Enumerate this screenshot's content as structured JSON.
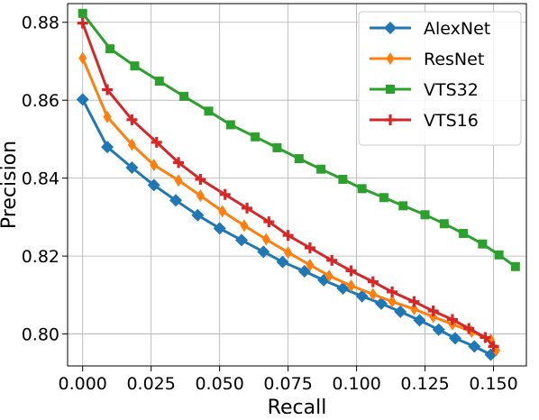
{
  "chart_data": {
    "type": "line",
    "title": "",
    "xlabel": "Recall",
    "ylabel": "Precision",
    "xlim": [
      -0.0055,
      0.162
    ],
    "ylim": [
      0.7918,
      0.8848
    ],
    "xticks": [
      0.0,
      0.025,
      0.05,
      0.075,
      0.1,
      0.125,
      0.15
    ],
    "xtick_labels": [
      "0.000",
      "0.025",
      "0.050",
      "0.075",
      "0.100",
      "0.125",
      "0.150"
    ],
    "yticks": [
      0.8,
      0.82,
      0.84,
      0.86,
      0.88
    ],
    "ytick_labels": [
      "0.80",
      "0.82",
      "0.84",
      "0.86",
      "0.88"
    ],
    "grid": true,
    "legend_position": "top-right",
    "series": [
      {
        "name": "AlexNet",
        "color": "#1f77b4",
        "marker": "diamond",
        "x": [
          0.0,
          0.009,
          0.018,
          0.026,
          0.034,
          0.042,
          0.05,
          0.058,
          0.066,
          0.073,
          0.081,
          0.088,
          0.095,
          0.102,
          0.109,
          0.116,
          0.123,
          0.13,
          0.136,
          0.143,
          0.149
        ],
        "y": [
          0.8602,
          0.848,
          0.8427,
          0.8382,
          0.8343,
          0.8305,
          0.8271,
          0.8241,
          0.8211,
          0.8185,
          0.8161,
          0.8138,
          0.8117,
          0.8097,
          0.8078,
          0.8057,
          0.8035,
          0.8011,
          0.7989,
          0.7968,
          0.7947
        ]
      },
      {
        "name": "ResNet",
        "color": "#ff7f0e",
        "marker": "thin-diamond",
        "x": [
          0.0,
          0.009,
          0.018,
          0.026,
          0.035,
          0.043,
          0.051,
          0.059,
          0.067,
          0.075,
          0.083,
          0.09,
          0.098,
          0.106,
          0.113,
          0.121,
          0.128,
          0.135,
          0.142,
          0.149,
          0.151
        ],
        "y": [
          0.8708,
          0.8557,
          0.8486,
          0.8434,
          0.8394,
          0.8355,
          0.8315,
          0.8278,
          0.8243,
          0.8209,
          0.8177,
          0.8149,
          0.8124,
          0.8102,
          0.8083,
          0.8064,
          0.8044,
          0.8025,
          0.8006,
          0.7985,
          0.7958
        ]
      },
      {
        "name": "VTS32",
        "color": "#2ca02c",
        "marker": "square",
        "x": [
          0.0,
          0.01,
          0.019,
          0.028,
          0.037,
          0.046,
          0.054,
          0.063,
          0.071,
          0.079,
          0.087,
          0.095,
          0.102,
          0.11,
          0.117,
          0.125,
          0.132,
          0.139,
          0.146,
          0.152,
          0.158
        ],
        "y": [
          0.8823,
          0.8732,
          0.8688,
          0.8649,
          0.861,
          0.8572,
          0.8537,
          0.8506,
          0.8478,
          0.845,
          0.8423,
          0.8397,
          0.8373,
          0.835,
          0.8329,
          0.8306,
          0.8283,
          0.8258,
          0.8231,
          0.8203,
          0.8173
        ]
      },
      {
        "name": "VTS16",
        "color": "#d62728",
        "marker": "plus",
        "x": [
          0.0,
          0.009,
          0.018,
          0.027,
          0.035,
          0.043,
          0.052,
          0.06,
          0.068,
          0.075,
          0.083,
          0.091,
          0.098,
          0.106,
          0.113,
          0.121,
          0.128,
          0.135,
          0.141,
          0.147,
          0.15
        ],
        "y": [
          0.8798,
          0.8627,
          0.855,
          0.8492,
          0.844,
          0.8397,
          0.8358,
          0.8323,
          0.8288,
          0.8253,
          0.8221,
          0.8189,
          0.8162,
          0.8134,
          0.8108,
          0.8083,
          0.8059,
          0.8037,
          0.8014,
          0.7991,
          0.7968
        ]
      }
    ]
  }
}
